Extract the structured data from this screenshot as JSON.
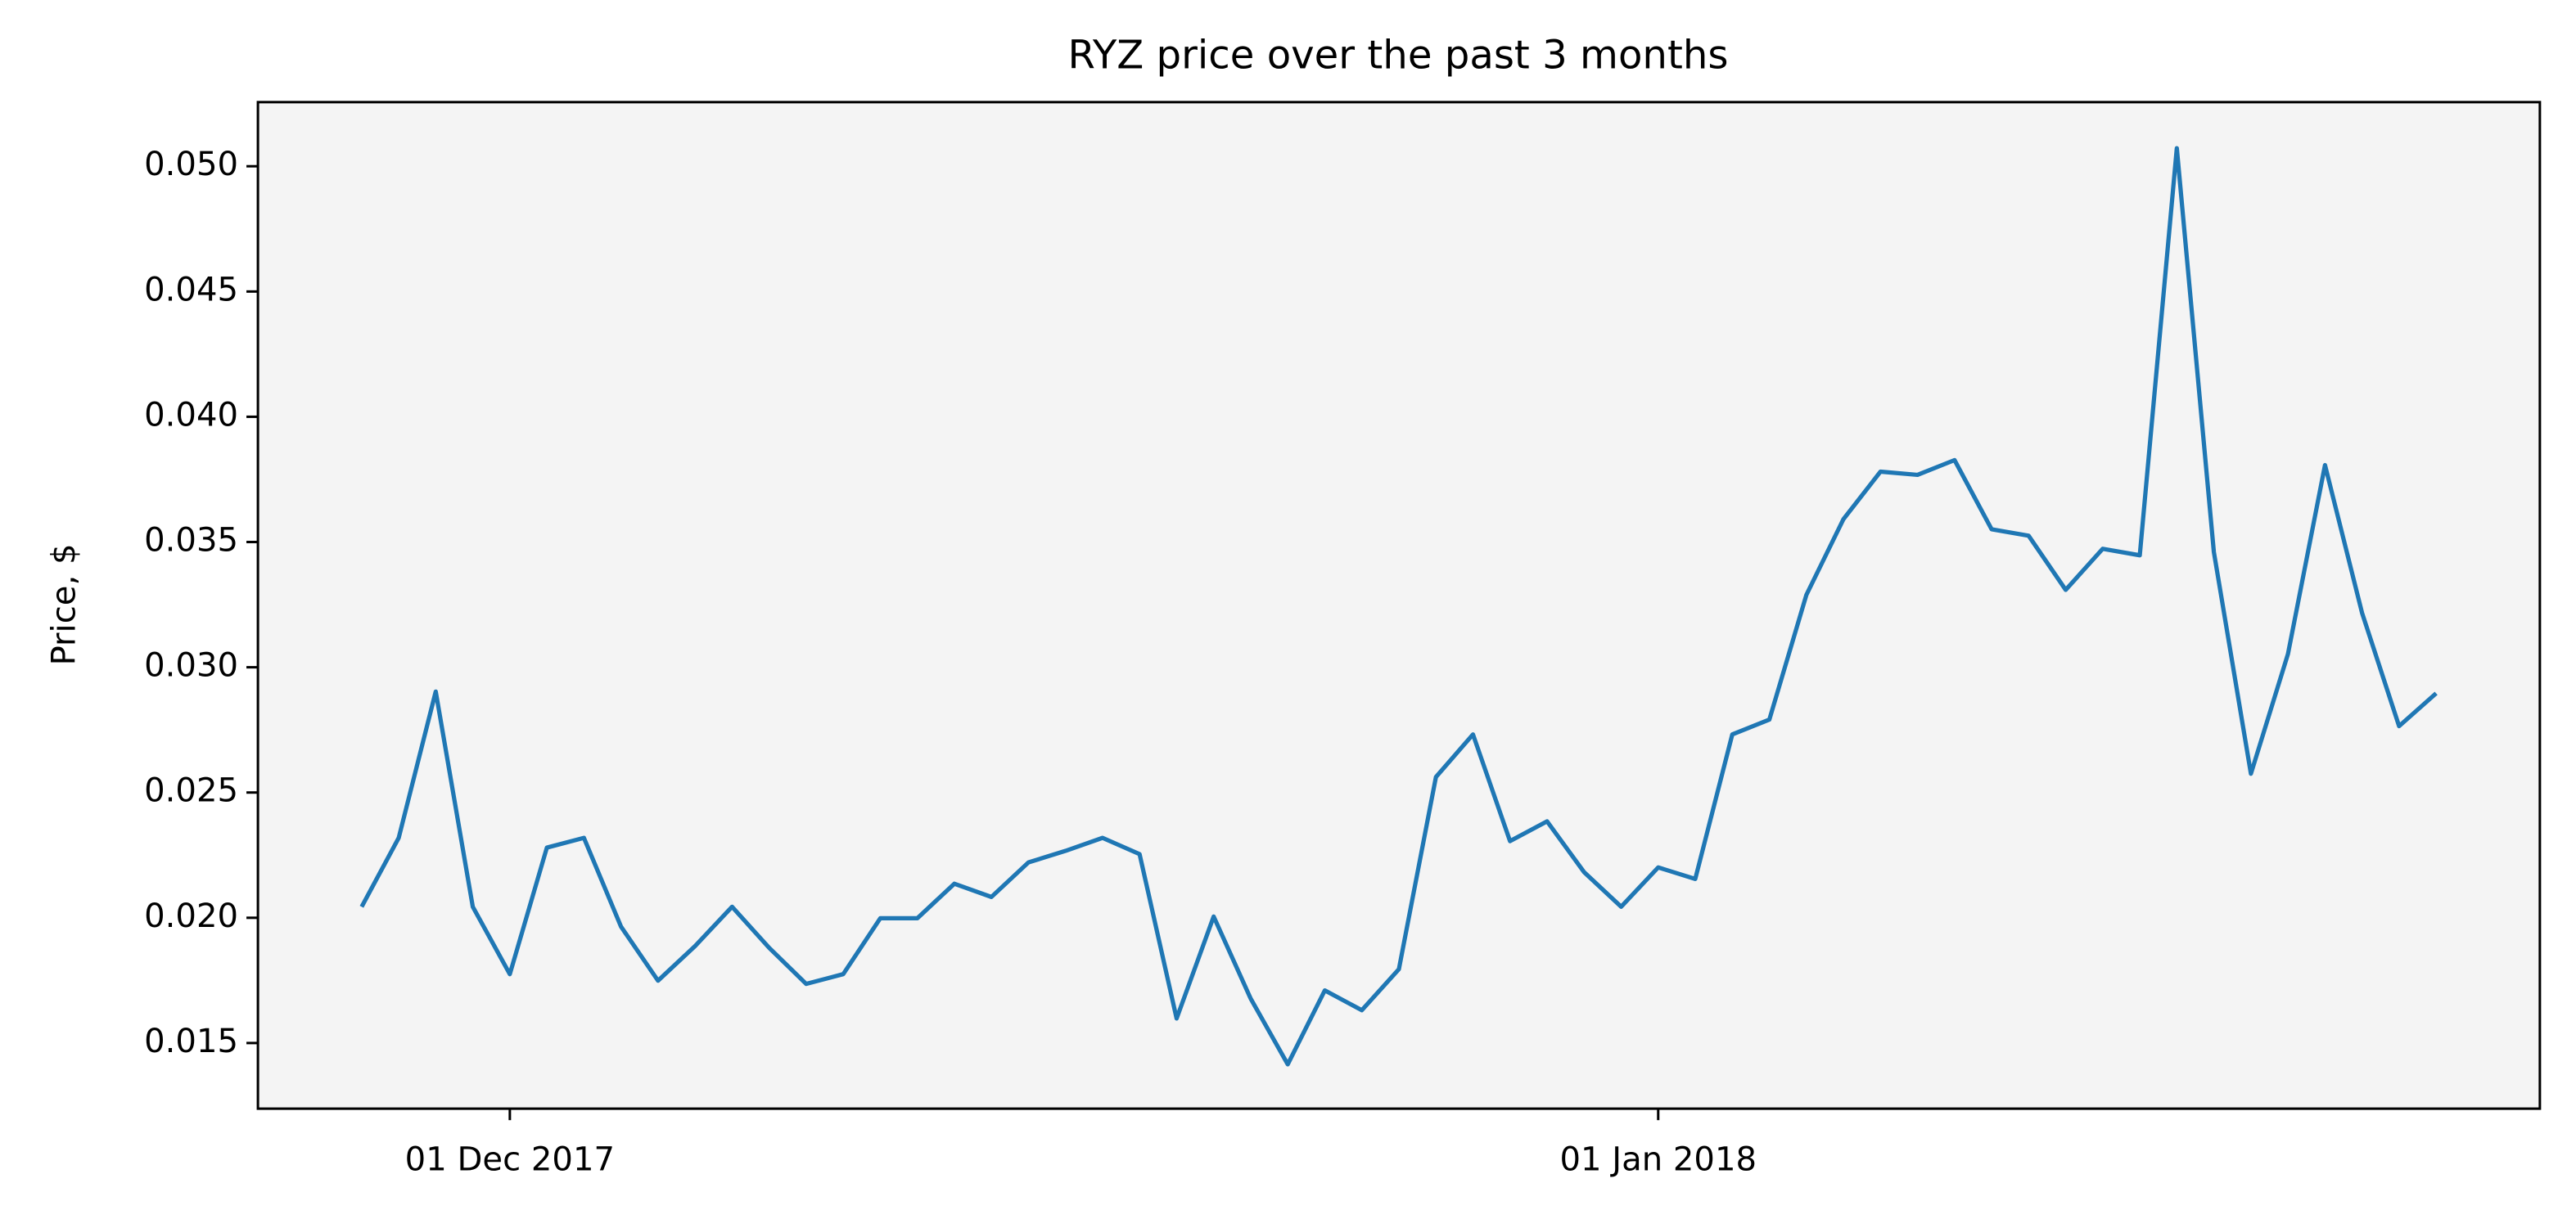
{
  "chart_data": {
    "type": "line",
    "title": "RYZ price over the past 3 months",
    "y_label": "Price, $",
    "x": [
      "2017-11-27",
      "2017-11-28",
      "2017-11-29",
      "2017-11-30",
      "2017-12-01",
      "2017-12-02",
      "2017-12-03",
      "2017-12-04",
      "2017-12-05",
      "2017-12-06",
      "2017-12-07",
      "2017-12-08",
      "2017-12-09",
      "2017-12-10",
      "2017-12-11",
      "2017-12-12",
      "2017-12-13",
      "2017-12-14",
      "2017-12-15",
      "2017-12-16",
      "2017-12-17",
      "2017-12-18",
      "2017-12-19",
      "2017-12-20",
      "2017-12-21",
      "2017-12-22",
      "2017-12-23",
      "2017-12-24",
      "2017-12-25",
      "2017-12-26",
      "2017-12-27",
      "2017-12-28",
      "2017-12-29",
      "2017-12-30",
      "2017-12-31",
      "2018-01-01",
      "2018-01-02",
      "2018-01-03",
      "2018-01-04",
      "2018-01-05",
      "2018-01-06",
      "2018-01-07",
      "2018-01-08",
      "2018-01-09",
      "2018-01-10",
      "2018-01-11",
      "2018-01-12",
      "2018-01-13",
      "2018-01-14",
      "2018-01-15",
      "2018-01-16",
      "2018-01-17",
      "2018-01-18",
      "2018-01-19",
      "2018-01-20",
      "2018-01-21",
      "2018-01-22"
    ],
    "series": [
      {
        "color": "#1f77b4",
        "values": [
          0.02044,
          0.02319,
          0.02903,
          0.02044,
          0.01775,
          0.0228,
          0.02319,
          0.01965,
          0.01749,
          0.01887,
          0.02044,
          0.0188,
          0.01736,
          0.01775,
          0.01998,
          0.01998,
          0.02136,
          0.02083,
          0.02221,
          0.02267,
          0.02319,
          0.02254,
          0.01598,
          0.02005,
          0.01677,
          0.01415,
          0.0171,
          0.01631,
          0.01795,
          0.02562,
          0.02732,
          0.02306,
          0.02385,
          0.02182,
          0.02044,
          0.02201,
          0.02155,
          0.02732,
          0.02791,
          0.03289,
          0.03591,
          0.03781,
          0.03768,
          0.03827,
          0.03551,
          0.03525,
          0.03309,
          0.03473,
          0.03447,
          0.05072,
          0.0346,
          0.02575,
          0.03053,
          0.03807,
          0.03217,
          0.02765,
          0.02896
        ]
      }
    ],
    "xlim": [
      "2017-11-24T04:48",
      "2018-01-24T19:12"
    ],
    "xticks": [
      {
        "value": "2017-12-01",
        "label": "01 Dec 2017"
      },
      {
        "value": "2018-01-01",
        "label": "01 Jan 2018"
      }
    ],
    "ylim": [
      0.01238,
      0.05256
    ],
    "yticks": [
      0.015,
      {
        "value": 0.02,
        "label": "0.020"
      },
      0.025,
      {
        "value": 0.03,
        "label": "0.030"
      },
      0.035,
      {
        "value": 0.04,
        "label": "0.040"
      },
      0.045,
      {
        "value": 0.05,
        "label": "0.050"
      }
    ]
  }
}
